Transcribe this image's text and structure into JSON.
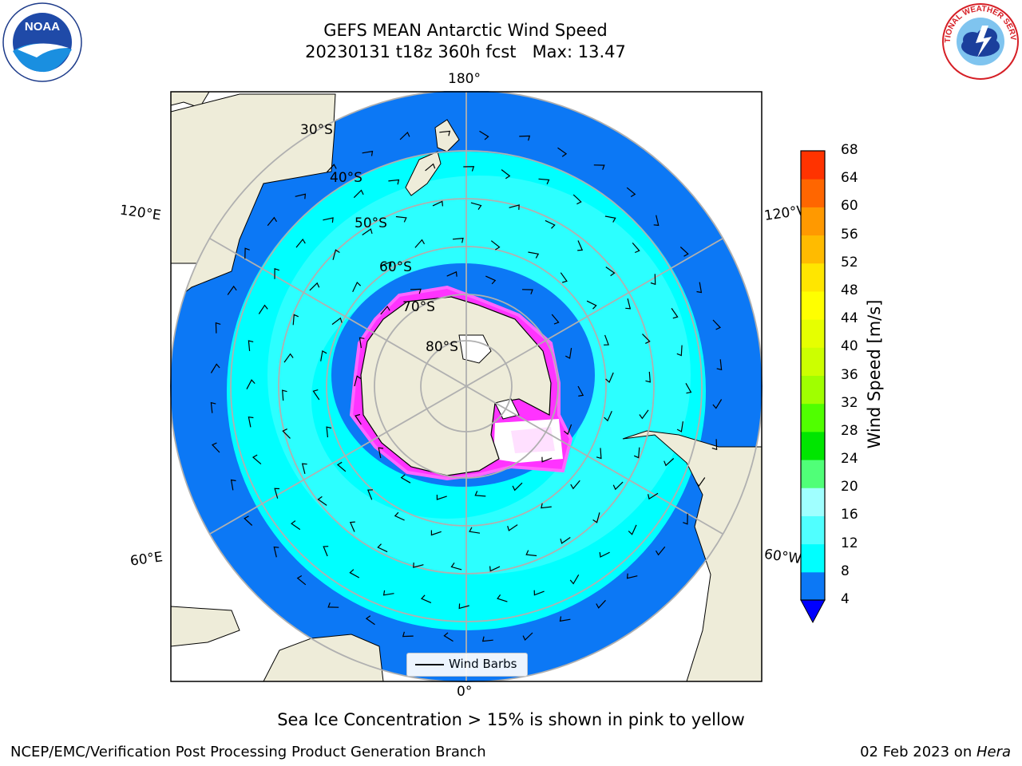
{
  "title": {
    "line1": "GEFS MEAN Antarctic Wind Speed",
    "line2": "20230131 t18z 360h fcst   Max: 13.47"
  },
  "logos": {
    "noaa": {
      "text": "NOAA",
      "icon": "noaa-logo-icon"
    },
    "nws": {
      "text": "NATIONAL WEATHER SERVICE",
      "icon": "nws-logo-icon"
    }
  },
  "map": {
    "projection": "south-polar-stereographic",
    "longitude_labels": {
      "top": "180°",
      "bottom": "0°",
      "upper_left": "120°E",
      "upper_right": "120°W",
      "lower_left": "60°E",
      "lower_right": "60°W"
    },
    "latitude_labels": [
      "30°S",
      "40°S",
      "50°S",
      "60°S",
      "70°S",
      "80°S"
    ],
    "colors": {
      "land": "#eeecd9",
      "wind_4_8": "#0c78f5",
      "wind_8_12": "#00ffff",
      "wind_12_16": "#50ffff",
      "sea_ice": "#ff33ff",
      "gridline": "#b0b0b0"
    },
    "legend": {
      "label": "Wind Barbs"
    }
  },
  "colorbar": {
    "label": "Wind Speed [m/s]",
    "ticks": [
      4,
      8,
      12,
      16,
      20,
      24,
      28,
      32,
      36,
      40,
      44,
      48,
      52,
      56,
      60,
      64,
      68
    ],
    "colors": [
      "#0c78f5",
      "#00ffff",
      "#50ffff",
      "#a0ffff",
      "#50ff78",
      "#00e600",
      "#50ff00",
      "#a0ff00",
      "#ccff00",
      "#e6ff00",
      "#ffff00",
      "#ffe600",
      "#ffbb00",
      "#ff9900",
      "#ff6600",
      "#ff3300"
    ],
    "under_color": "#0000ff"
  },
  "caption": "Sea Ice Concentration > 15% is shown in pink to yellow",
  "footer": {
    "left": "NCEP/EMC/Verification Post Processing Product Generation Branch",
    "date": "02 Feb 2023 on ",
    "machine": "Hera"
  }
}
